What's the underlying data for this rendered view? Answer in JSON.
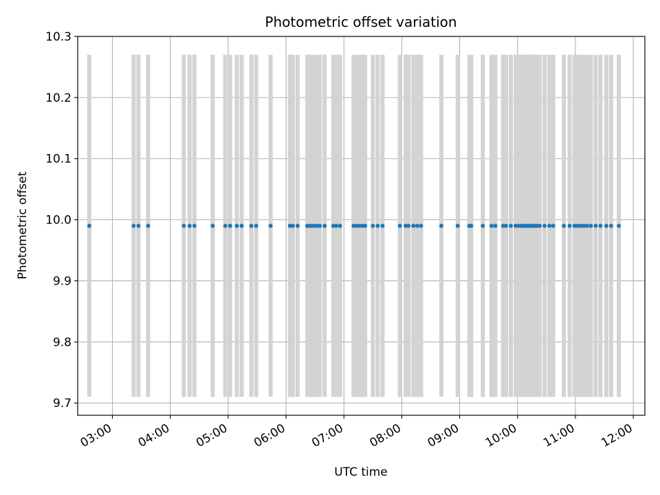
{
  "chart_data": {
    "type": "scatter",
    "title": "Photometric offset variation",
    "xlabel": "UTC time",
    "ylabel": "Photometric offset",
    "xlim": [
      "02:24",
      "12:12"
    ],
    "ylim": [
      9.68,
      10.3
    ],
    "grid": true,
    "legend": "none",
    "x_ticks": [
      "03:00",
      "04:00",
      "05:00",
      "06:00",
      "07:00",
      "08:00",
      "09:00",
      "10:00",
      "11:00",
      "12:00"
    ],
    "y_ticks": [
      "9.7",
      "9.8",
      "9.9",
      "10.0",
      "10.1",
      "10.2",
      "10.3"
    ],
    "band_range": [
      9.71,
      10.27
    ],
    "series": [
      {
        "marker_color": "#1f77b4",
        "band_color": "#d3d3d3",
        "y_value": 9.99,
        "x": [
          "02:36",
          "03:22",
          "03:27",
          "03:37",
          "04:14",
          "04:20",
          "04:25",
          "04:44",
          "04:57",
          "05:02",
          "05:09",
          "05:14",
          "05:24",
          "05:29",
          "05:44",
          "06:04",
          "06:07",
          "06:12",
          "06:22",
          "06:25",
          "06:27",
          "06:30",
          "06:32",
          "06:35",
          "06:40",
          "06:49",
          "06:52",
          "06:56",
          "07:10",
          "07:13",
          "07:16",
          "07:19",
          "07:22",
          "07:30",
          "07:35",
          "07:40",
          "07:58",
          "08:04",
          "08:07",
          "08:12",
          "08:16",
          "08:20",
          "08:41",
          "08:58",
          "09:10",
          "09:12",
          "09:24",
          "09:33",
          "09:37",
          "09:45",
          "09:48",
          "09:53",
          "09:58",
          "10:01",
          "10:04",
          "10:06",
          "10:08",
          "10:10",
          "10:12",
          "10:14",
          "10:16",
          "10:18",
          "10:20",
          "10:23",
          "10:28",
          "10:33",
          "10:37",
          "10:48",
          "10:54",
          "10:59",
          "11:01",
          "11:04",
          "11:06",
          "11:09",
          "11:12",
          "11:16",
          "11:21",
          "11:26",
          "11:32",
          "11:37",
          "11:45"
        ]
      }
    ]
  }
}
